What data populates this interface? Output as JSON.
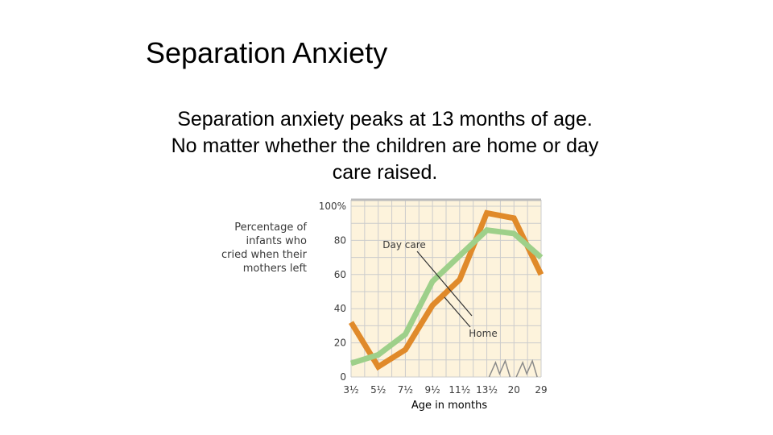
{
  "slide": {
    "title": "Separation Anxiety",
    "body_lines": [
      "Separation anxiety peaks at 13 months of age.",
      "No matter whether the children are home or day",
      "care raised."
    ]
  },
  "chart_data": {
    "type": "line",
    "title": "",
    "ylabel_lines": [
      "Percentage of",
      "infants who",
      "cried when their",
      "mothers left"
    ],
    "xlabel": "Age in months",
    "categories": [
      "3½",
      "5½",
      "7½",
      "9½",
      "11½",
      "13½",
      "20",
      "29"
    ],
    "ylim": [
      0,
      100
    ],
    "yticks": [
      {
        "value": 0,
        "label": "0"
      },
      {
        "value": 20,
        "label": "20"
      },
      {
        "value": 40,
        "label": "40"
      },
      {
        "value": 60,
        "label": "60"
      },
      {
        "value": 80,
        "label": "80"
      },
      {
        "value": 100,
        "label": "100%"
      }
    ],
    "grid": true,
    "axis_breaks_after": [
      "13½",
      "20"
    ],
    "series": [
      {
        "name": "Home",
        "color": "#e08a2a",
        "values": [
          32,
          6,
          16,
          42,
          57,
          96,
          93,
          60
        ]
      },
      {
        "name": "Day care",
        "color": "#9ed08a",
        "values": [
          8,
          13,
          25,
          56,
          71,
          86,
          84,
          70
        ]
      }
    ],
    "annotations": [
      {
        "text": "Day care",
        "series": "Day care",
        "point_index": 3
      },
      {
        "text": "Home",
        "series": "Home",
        "point_index": 3
      }
    ],
    "colors": {
      "background": "#fdf3dc",
      "grid": "#cccccc",
      "axis_text": "#3a3a3a"
    }
  }
}
